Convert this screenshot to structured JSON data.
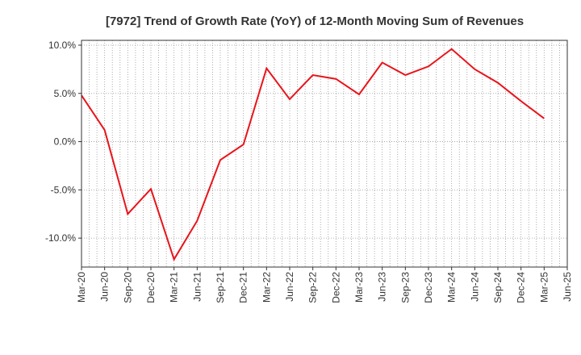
{
  "chart_data": {
    "type": "line",
    "title": "[7972]  Trend of Growth Rate (YoY) of 12-Month Moving Sum of Revenues",
    "xlabel": "",
    "ylabel": "",
    "x_tick_labels": [
      "Mar-20",
      "Jun-20",
      "Sep-20",
      "Dec-20",
      "Mar-21",
      "Jun-21",
      "Sep-21",
      "Dec-21",
      "Mar-22",
      "Jun-22",
      "Sep-22",
      "Dec-22",
      "Mar-23",
      "Jun-23",
      "Sep-23",
      "Dec-23",
      "Mar-24",
      "Jun-24",
      "Sep-24",
      "Dec-24",
      "Mar-25",
      "Jun-25"
    ],
    "y_ticks": [
      10,
      5,
      0,
      -5,
      -10
    ],
    "y_tick_labels": [
      "10.0%",
      "5.0%",
      "0.0%",
      "-5.0%",
      "-10.0%"
    ],
    "ylim": [
      -13,
      10.5
    ],
    "grid": true,
    "series": [
      {
        "color": "#e8141b",
        "x": [
          "Mar-20",
          "Jun-20",
          "Sep-20",
          "Dec-20",
          "Mar-21",
          "Jun-21",
          "Sep-21",
          "Dec-21",
          "Mar-22",
          "Jun-22",
          "Sep-22",
          "Dec-22",
          "Mar-23",
          "Jun-23",
          "Sep-23",
          "Dec-23",
          "Mar-24",
          "Jun-24",
          "Sep-24",
          "Dec-24",
          "Mar-25"
        ],
        "values": [
          4.8,
          1.2,
          -7.5,
          -4.9,
          -12.2,
          -8.2,
          -1.9,
          -0.3,
          7.6,
          4.4,
          6.9,
          6.5,
          4.9,
          8.2,
          6.9,
          7.8,
          9.6,
          7.5,
          6.1,
          4.2,
          2.4
        ]
      }
    ]
  }
}
